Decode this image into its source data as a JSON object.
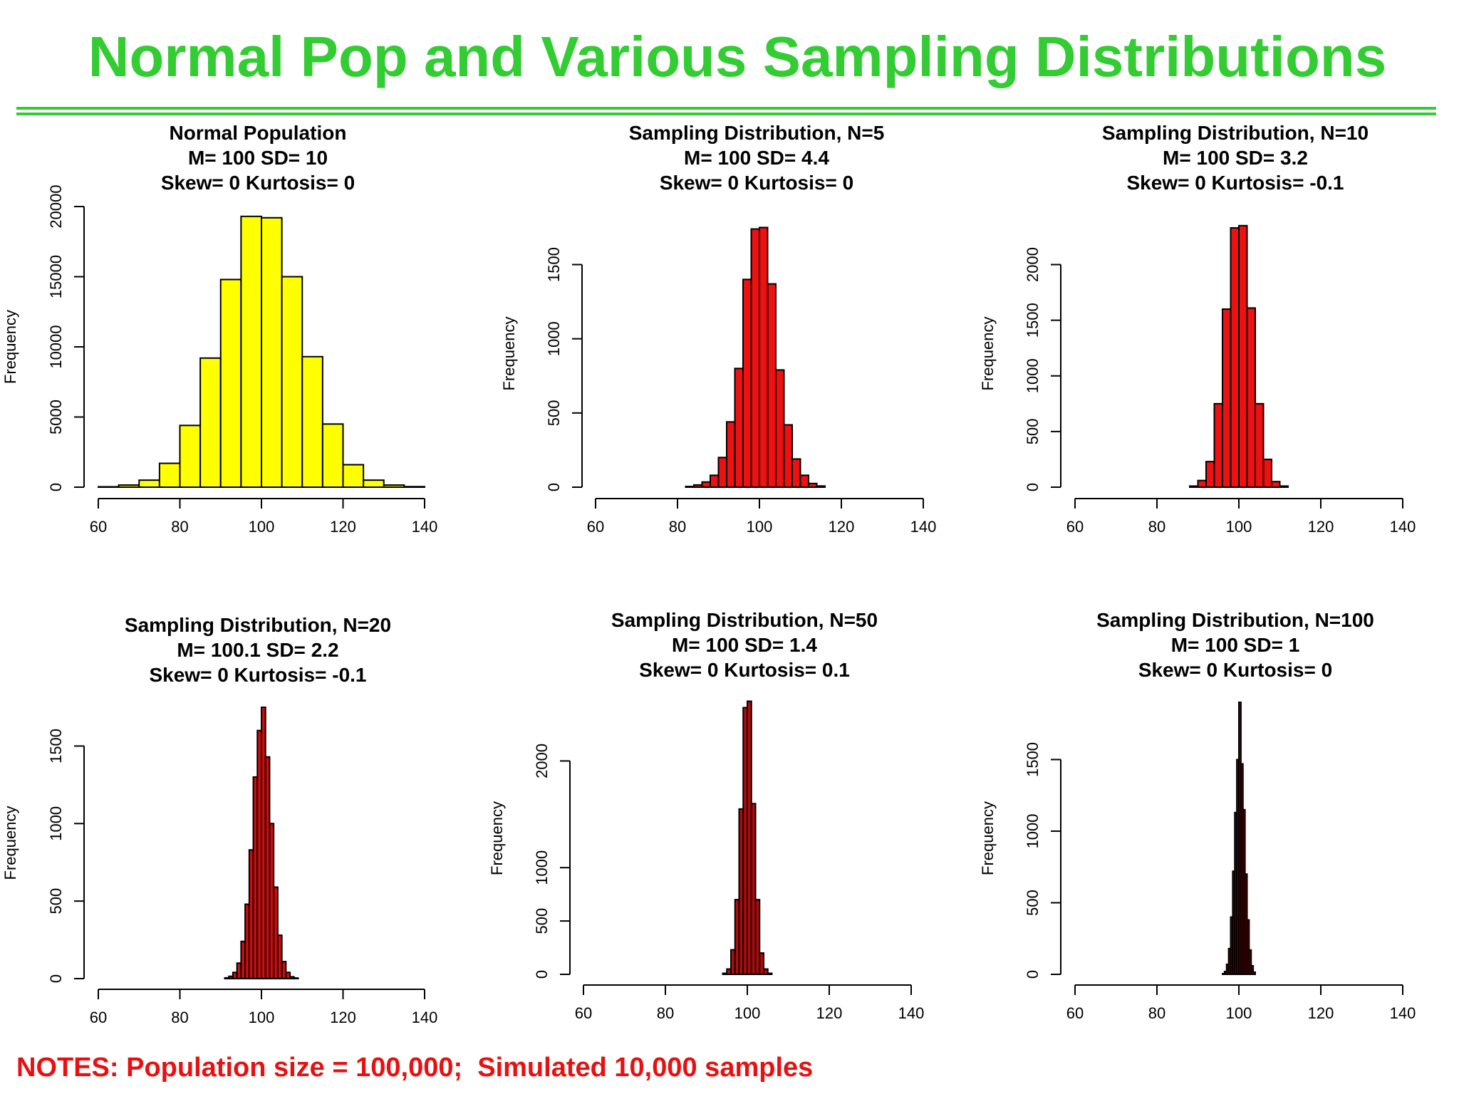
{
  "slide": {
    "title": "Normal Pop and Various Sampling Distributions",
    "notes": "NOTES: Population size = 100,000;  Simulated 10,000 samples",
    "title_color": "#33cc33",
    "notes_color": "#e81010"
  },
  "chart_data": [
    {
      "type": "bar",
      "title": [
        "Normal Population",
        "M= 100 SD= 10",
        "Skew= 0 Kurtosis=  0"
      ],
      "ylabel": "Frequency",
      "xlabel": "",
      "fill": "#ffff00",
      "xlim": [
        60,
        140
      ],
      "ylim": [
        0,
        20000
      ],
      "xticks": [
        60,
        80,
        100,
        120,
        140
      ],
      "yticks": [
        0,
        5000,
        10000,
        15000,
        20000
      ],
      "bin_width": 5,
      "bins_start": [
        60,
        65,
        70,
        75,
        80,
        85,
        90,
        95,
        100,
        105,
        110,
        115,
        120,
        125,
        130,
        135
      ],
      "values": [
        30,
        150,
        500,
        1700,
        4400,
        9200,
        14800,
        19300,
        19200,
        15000,
        9300,
        4500,
        1600,
        500,
        150,
        40
      ]
    },
    {
      "type": "bar",
      "title": [
        "Sampling Distribution, N=5",
        "M= 100 SD= 4.4",
        "Skew= 0 Kurtosis=  0"
      ],
      "ylabel": "Frequency",
      "xlabel": "",
      "fill": "#ee1111",
      "xlim": [
        60,
        140
      ],
      "ylim": [
        0,
        1800
      ],
      "xticks": [
        60,
        80,
        100,
        120,
        140
      ],
      "yticks": [
        0,
        500,
        1000,
        1500
      ],
      "bin_width": 2,
      "bins_start": [
        82,
        84,
        86,
        88,
        90,
        92,
        94,
        96,
        98,
        100,
        102,
        104,
        106,
        108,
        110,
        112,
        114
      ],
      "values": [
        5,
        15,
        35,
        80,
        200,
        440,
        800,
        1400,
        1740,
        1750,
        1370,
        790,
        420,
        190,
        80,
        25,
        8
      ]
    },
    {
      "type": "bar",
      "title": [
        "Sampling Distribution, N=10",
        "M= 100 SD= 3.2",
        "Skew= 0 Kurtosis=  -0.1"
      ],
      "ylabel": "Frequency",
      "xlabel": "",
      "fill": "#ee1111",
      "xlim": [
        60,
        140
      ],
      "ylim": [
        0,
        2400
      ],
      "xticks": [
        60,
        80,
        100,
        120,
        140
      ],
      "yticks": [
        0,
        500,
        1000,
        1500,
        2000
      ],
      "bin_width": 2,
      "bins_start": [
        88,
        90,
        92,
        94,
        96,
        98,
        100,
        102,
        104,
        106,
        108,
        110
      ],
      "values": [
        10,
        60,
        230,
        750,
        1600,
        2330,
        2350,
        1610,
        750,
        250,
        50,
        10
      ]
    },
    {
      "type": "bar",
      "title": [
        "Sampling Distribution, N=20",
        "M= 100.1 SD= 2.2",
        "Skew= 0 Kurtosis=  -0.1"
      ],
      "ylabel": "Frequency",
      "xlabel": "",
      "fill": "#cc0e0e",
      "xlim": [
        60,
        140
      ],
      "ylim": [
        0,
        1750
      ],
      "xticks": [
        60,
        80,
        100,
        120,
        140
      ],
      "yticks": [
        0,
        500,
        1000,
        1500
      ],
      "bin_width": 1,
      "bins_start": [
        91,
        92,
        93,
        94,
        95,
        96,
        97,
        98,
        99,
        100,
        101,
        102,
        103,
        104,
        105,
        106,
        107,
        108
      ],
      "values": [
        5,
        15,
        40,
        100,
        240,
        480,
        830,
        1300,
        1600,
        1750,
        1430,
        1000,
        590,
        280,
        110,
        40,
        12,
        4
      ]
    },
    {
      "type": "bar",
      "title": [
        "Sampling Distribution, N=50",
        "M= 100 SD= 1.4",
        "Skew= 0 Kurtosis=  0.1"
      ],
      "ylabel": "Frequency",
      "xlabel": "",
      "fill": "#b00c0c",
      "xlim": [
        60,
        140
      ],
      "ylim": [
        0,
        2550
      ],
      "xticks": [
        60,
        80,
        100,
        120,
        140
      ],
      "yticks": [
        0,
        500,
        1000,
        2000
      ],
      "bin_width": 1,
      "bins_start": [
        94,
        95,
        96,
        97,
        98,
        99,
        100,
        101,
        102,
        103,
        104,
        105
      ],
      "values": [
        10,
        50,
        230,
        700,
        1550,
        2500,
        2560,
        1600,
        700,
        200,
        50,
        10
      ]
    },
    {
      "type": "bar",
      "title": [
        "Sampling Distribution, N=100",
        "M= 100 SD= 1",
        "Skew= 0 Kurtosis=  0"
      ],
      "ylabel": "Frequency",
      "xlabel": "",
      "fill": "#7a0808",
      "xlim": [
        60,
        140
      ],
      "ylim": [
        0,
        1900
      ],
      "xticks": [
        60,
        80,
        100,
        120,
        140
      ],
      "yticks": [
        0,
        500,
        1000,
        1500
      ],
      "bin_width": 0.5,
      "bins_start": [
        96,
        96.5,
        97,
        97.5,
        98,
        98.5,
        99,
        99.5,
        100,
        100.5,
        101,
        101.5,
        102,
        102.5,
        103,
        103.5
      ],
      "values": [
        5,
        20,
        70,
        180,
        400,
        720,
        1130,
        1500,
        1900,
        1470,
        1150,
        700,
        380,
        170,
        60,
        15
      ]
    }
  ]
}
